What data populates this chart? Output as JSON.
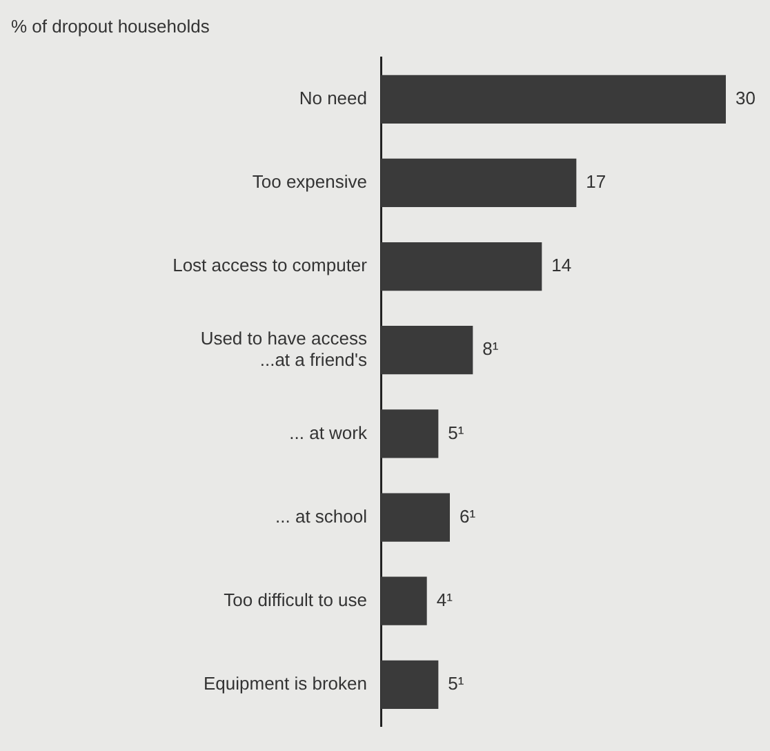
{
  "chart_data": {
    "type": "bar",
    "orientation": "horizontal",
    "title": "% of dropout households",
    "categories": [
      "No need",
      "Too expensive",
      "Lost access to computer",
      "Used to have access\n...at a friend's",
      "... at work",
      "... at school",
      "Too difficult to use",
      "Equipment is broken"
    ],
    "values": [
      30,
      17,
      14,
      8,
      5,
      6,
      4,
      5
    ],
    "value_labels": [
      "30",
      "17",
      "14",
      "8¹",
      "5¹",
      "6¹",
      "4¹",
      "5¹"
    ],
    "color": "#3a3a3a",
    "legend": false
  }
}
